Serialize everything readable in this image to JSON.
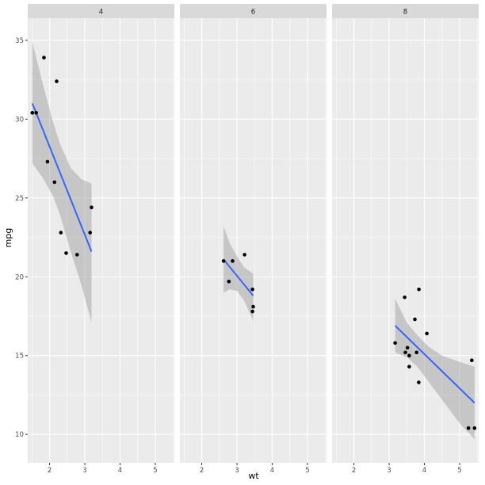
{
  "chart_data": {
    "type": "scatter",
    "facet_by": "cyl",
    "x_label": "wt",
    "y_label": "mpg",
    "x_range": [
      1.38,
      5.54
    ],
    "y_range": [
      8.2,
      36.4
    ],
    "x_ticks": [
      2,
      3,
      4,
      5
    ],
    "y_ticks": [
      10,
      15,
      20,
      25,
      30,
      35
    ],
    "x_tick_labels": [
      "2",
      "3",
      "4",
      "5"
    ],
    "y_tick_labels": [
      "10",
      "15",
      "20",
      "25",
      "30",
      "35"
    ],
    "panels": [
      {
        "label": "4",
        "points": [
          [
            1.51,
            30.4
          ],
          [
            1.62,
            30.4
          ],
          [
            1.84,
            33.9
          ],
          [
            1.94,
            27.3
          ],
          [
            2.14,
            26.0
          ],
          [
            2.2,
            32.4
          ],
          [
            2.32,
            22.8
          ],
          [
            2.47,
            21.5
          ],
          [
            2.78,
            21.4
          ],
          [
            3.15,
            22.8
          ],
          [
            3.19,
            24.4
          ]
        ],
        "fit": {
          "x0": 1.51,
          "y0": 31.0,
          "x1": 3.19,
          "y1": 21.6
        },
        "ribbon_upper": [
          [
            1.51,
            34.9
          ],
          [
            1.8,
            32.3
          ],
          [
            2.1,
            29.8
          ],
          [
            2.3,
            28.4
          ],
          [
            2.6,
            26.9
          ],
          [
            2.9,
            26.2
          ],
          [
            3.19,
            25.9
          ]
        ],
        "ribbon_lower": [
          [
            1.51,
            27.2
          ],
          [
            1.8,
            26.3
          ],
          [
            2.1,
            25.1
          ],
          [
            2.3,
            23.9
          ],
          [
            2.6,
            21.6
          ],
          [
            2.9,
            19.5
          ],
          [
            3.19,
            17.1
          ]
        ]
      },
      {
        "label": "6",
        "points": [
          [
            2.62,
            21.0
          ],
          [
            2.77,
            19.7
          ],
          [
            2.875,
            21.0
          ],
          [
            3.215,
            21.4
          ],
          [
            3.44,
            19.2
          ],
          [
            3.44,
            17.8
          ],
          [
            3.46,
            18.1
          ]
        ],
        "fit": {
          "x0": 2.62,
          "y0": 21.1,
          "x1": 3.46,
          "y1": 18.8
        },
        "ribbon_upper": [
          [
            2.62,
            23.2
          ],
          [
            2.8,
            22.1
          ],
          [
            3.0,
            21.3
          ],
          [
            3.2,
            20.6
          ],
          [
            3.46,
            20.2
          ]
        ],
        "ribbon_lower": [
          [
            2.62,
            19.0
          ],
          [
            2.8,
            19.2
          ],
          [
            3.0,
            19.1
          ],
          [
            3.2,
            18.5
          ],
          [
            3.46,
            17.2
          ]
        ]
      },
      {
        "label": "8",
        "points": [
          [
            3.17,
            15.8
          ],
          [
            3.44,
            18.7
          ],
          [
            3.46,
            15.2
          ],
          [
            3.52,
            15.5
          ],
          [
            3.57,
            14.3
          ],
          [
            3.57,
            15.0
          ],
          [
            3.73,
            17.3
          ],
          [
            3.78,
            15.2
          ],
          [
            3.84,
            13.3
          ],
          [
            3.845,
            19.2
          ],
          [
            4.07,
            16.4
          ],
          [
            5.25,
            10.4
          ],
          [
            5.345,
            14.7
          ],
          [
            5.424,
            10.4
          ]
        ],
        "fit": {
          "x0": 3.17,
          "y0": 16.9,
          "x1": 5.424,
          "y1": 12.0
        },
        "ribbon_upper": [
          [
            3.17,
            18.6
          ],
          [
            3.5,
            17.1
          ],
          [
            3.8,
            16.3
          ],
          [
            4.1,
            15.6
          ],
          [
            4.5,
            15.0
          ],
          [
            5.0,
            14.6
          ],
          [
            5.424,
            14.3
          ]
        ],
        "ribbon_lower": [
          [
            3.17,
            15.2
          ],
          [
            3.5,
            14.9
          ],
          [
            3.8,
            14.3
          ],
          [
            4.1,
            13.4
          ],
          [
            4.5,
            12.2
          ],
          [
            5.0,
            10.7
          ],
          [
            5.424,
            9.7
          ]
        ]
      }
    ]
  }
}
